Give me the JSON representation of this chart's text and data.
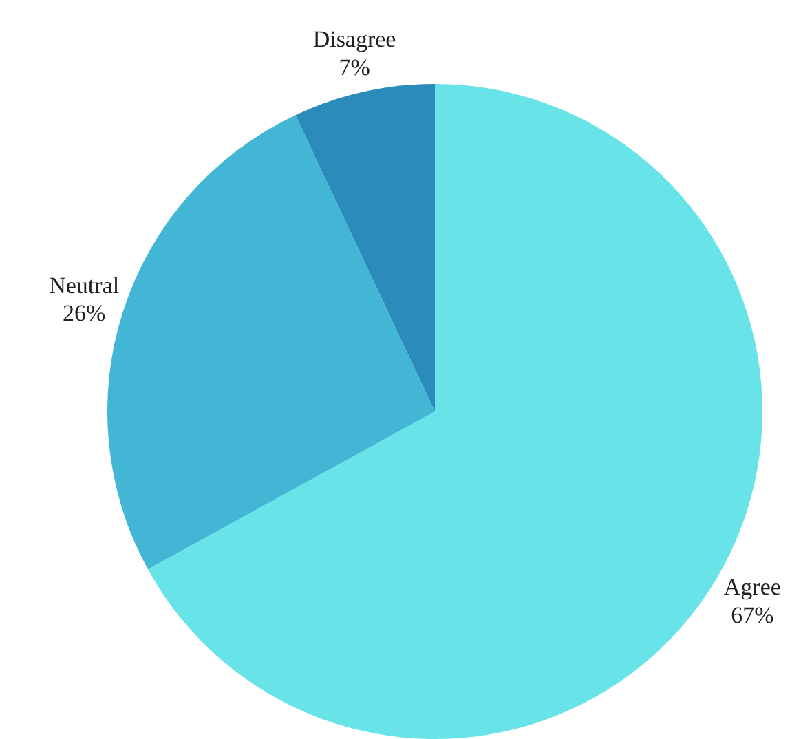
{
  "chart_data": {
    "type": "pie",
    "categories": [
      "Agree",
      "Neutral",
      "Disagree"
    ],
    "values": [
      67,
      26,
      7
    ],
    "colors": [
      "#68e4e8",
      "#42b6d4",
      "#2b8bba"
    ],
    "value_labels": [
      "67%",
      "26%",
      "7%"
    ],
    "legend": false
  }
}
